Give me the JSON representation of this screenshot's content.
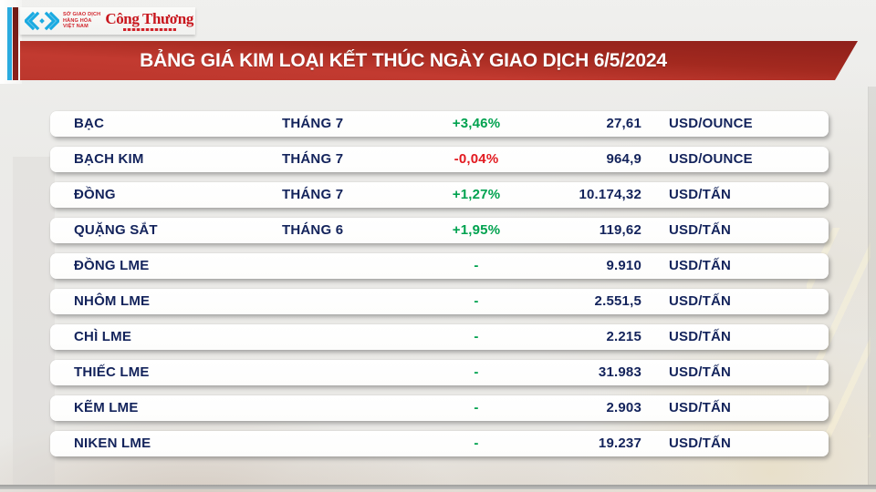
{
  "header": {
    "exchange": {
      "name_lines": [
        "SỞ GIAO DỊCH",
        "HÀNG HÓA",
        "VIỆT NAM"
      ]
    },
    "publication": "Công Thương",
    "title": "BẢNG GIÁ KIM LOẠI KẾT THÚC NGÀY GIAO DỊCH 6/5/2024"
  },
  "colors": {
    "banner_red": "#b3302a",
    "text_navy": "#13235b",
    "up_green": "#00a24f",
    "down_red": "#e2191f",
    "logo_cyan": "#1baae1",
    "brand_red": "#c8161d"
  },
  "chart_data": {
    "type": "table",
    "title": "BẢNG GIÁ KIM LOẠI KẾT THÚC NGÀY GIAO DỊCH 6/5/2024",
    "columns": [
      "commodity",
      "contract_month",
      "change_pct",
      "price",
      "unit"
    ],
    "rows": [
      {
        "commodity": "BẠC",
        "month": "THÁNG 7",
        "change": "+3,46%",
        "direction": "up",
        "price": "27,61",
        "unit": "USD/OUNCE"
      },
      {
        "commodity": "BẠCH KIM",
        "month": "THÁNG 7",
        "change": "-0,04%",
        "direction": "down",
        "price": "964,9",
        "unit": "USD/OUNCE"
      },
      {
        "commodity": "ĐỒNG",
        "month": "THÁNG 7",
        "change": "+1,27%",
        "direction": "up",
        "price": "10.174,32",
        "unit": "USD/TẤN"
      },
      {
        "commodity": "QUẶNG SẮT",
        "month": "THÁNG 6",
        "change": "+1,95%",
        "direction": "up",
        "price": "119,62",
        "unit": "USD/TẤN"
      },
      {
        "commodity": "ĐỒNG LME",
        "month": "",
        "change": "-",
        "direction": "flat",
        "price": "9.910",
        "unit": "USD/TẤN"
      },
      {
        "commodity": "NHÔM LME",
        "month": "",
        "change": "-",
        "direction": "flat",
        "price": "2.551,5",
        "unit": "USD/TẤN"
      },
      {
        "commodity": "CHÌ LME",
        "month": "",
        "change": "-",
        "direction": "flat",
        "price": "2.215",
        "unit": "USD/TẤN"
      },
      {
        "commodity": "THIẾC LME",
        "month": "",
        "change": "-",
        "direction": "flat",
        "price": "31.983",
        "unit": "USD/TẤN"
      },
      {
        "commodity": "KẼM LME",
        "month": "",
        "change": "-",
        "direction": "flat",
        "price": "2.903",
        "unit": "USD/TẤN"
      },
      {
        "commodity": "NIKEN LME",
        "month": "",
        "change": "-",
        "direction": "flat",
        "price": "19.237",
        "unit": "USD/TẤN"
      }
    ]
  }
}
